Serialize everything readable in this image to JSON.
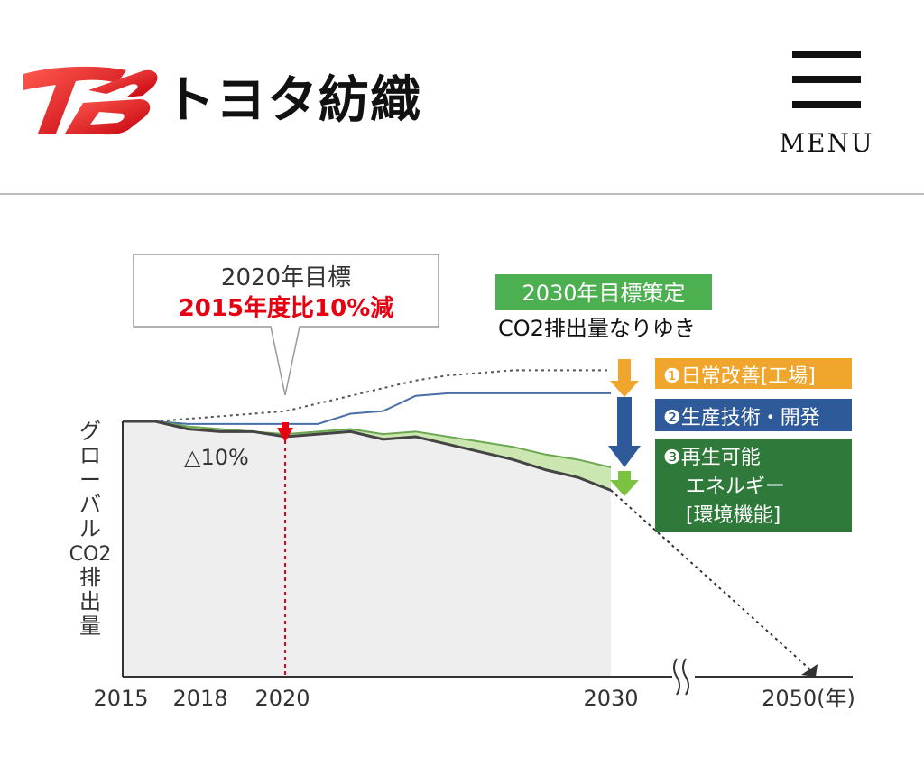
{
  "header": {
    "logo_text": "トヨタ紡織",
    "menu_label": "MENU"
  },
  "chart_data": {
    "type": "area",
    "title": "",
    "ylabel": "グローバルCO2排出量",
    "x_ticks": [
      "2015",
      "2018",
      "2020",
      "2030",
      "2050(年)"
    ],
    "callout_2020": {
      "line1": "2020年目標",
      "line2": "2015年度比10%減"
    },
    "reduction_label": "△10%",
    "target_2030": {
      "badge": "2030年目標策定",
      "subtitle": "CO2排出量なりゆき"
    },
    "measures": [
      {
        "label": "❶日常改善[工場]",
        "color": "#f0a52c"
      },
      {
        "label": "❷生産技術・開発",
        "color": "#2f5a9a"
      },
      {
        "label": "❸再生可能\nエネルギー\n[環境機能]",
        "color": "#2f7a3a"
      }
    ],
    "colors": {
      "accent_red": "#e60012",
      "dotted": "#555555",
      "blue_line": "#4a6ea8",
      "green_band": "#c6e3a8",
      "gray_fill": "#eeeeee",
      "orange": "#f0a52c",
      "dark_green": "#2f7a3a",
      "badge_green": "#4caf50"
    },
    "series": [
      {
        "name": "",
        "years": [
          2015,
          2016,
          2017,
          2018,
          2019,
          2020,
          2021,
          2022,
          2023,
          2024,
          2025,
          2026,
          2027,
          2028,
          2029,
          2030
        ],
        "values": [
          100,
          100,
          101,
          102,
          103,
          104,
          107,
          110,
          113,
          116,
          118,
          119,
          120,
          120,
          120,
          120
        ]
      },
      {
        "name": "",
        "years": [
          2015,
          2016,
          2017,
          2018,
          2019,
          2020,
          2021,
          2022,
          2023,
          2024,
          2025,
          2026,
          2027,
          2028,
          2029,
          2030
        ],
        "values": [
          100,
          100,
          99,
          99,
          99,
          99,
          99,
          103,
          104,
          110,
          111,
          111,
          111,
          111,
          111,
          111
        ]
      },
      {
        "name": "",
        "years": [
          2015,
          2016,
          2017,
          2018,
          2019,
          2020,
          2021,
          2022,
          2023,
          2024,
          2025,
          2026,
          2027,
          2028,
          2029,
          2030
        ],
        "values": [
          100,
          100,
          98,
          97,
          96,
          95,
          96,
          97,
          95,
          96,
          94,
          92,
          90,
          87,
          85,
          82
        ]
      },
      {
        "name": "",
        "years": [
          2015,
          2016,
          2017,
          2018,
          2019,
          2020,
          2021,
          2022,
          2023,
          2024,
          2025,
          2026,
          2027,
          2028,
          2029,
          2030
        ],
        "values": [
          100,
          100,
          97,
          96,
          96,
          94,
          95,
          96,
          93,
          94,
          91,
          88,
          85,
          81,
          78,
          73
        ]
      }
    ],
    "trajectory_2050": {
      "from": [
        2030,
        73
      ],
      "to": [
        2050,
        0
      ]
    },
    "ylim": [
      0,
      130
    ]
  }
}
